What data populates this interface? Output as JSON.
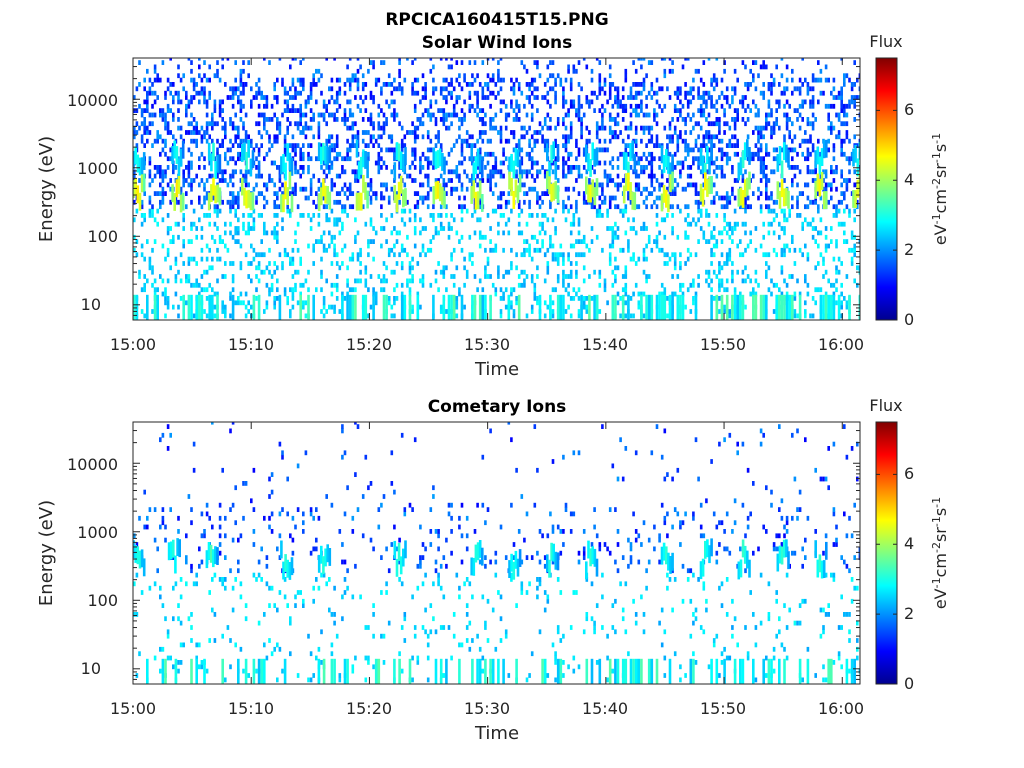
{
  "figure": {
    "title": "RPCICA160415T15.PNG"
  },
  "colors": {
    "axis": "#262626",
    "colormap": [
      "#00008f",
      "#0000ff",
      "#0080ff",
      "#00ffff",
      "#80ff80",
      "#ffff00",
      "#ff8000",
      "#ff0000",
      "#800000"
    ]
  },
  "colorbar": {
    "label": "Flux",
    "ticks": [
      "0",
      "2",
      "4",
      "6"
    ],
    "range": [
      0,
      7.5
    ],
    "unit": {
      "base1": "eV",
      "exp1": "-1",
      "base2": "cm",
      "exp2": "-2",
      "base3": "sr",
      "exp3": "-1",
      "base4": "s",
      "exp4": "-1"
    }
  },
  "chart_data": [
    {
      "type": "heatmap",
      "title": "Solar Wind Ions",
      "xlabel": "Time",
      "ylabel": "Energy (eV)",
      "x_ticks": [
        "15:00",
        "15:10",
        "15:20",
        "15:30",
        "15:40",
        "15:50",
        "16:00"
      ],
      "y_ticks": [
        "10",
        "100",
        "1000",
        "10000"
      ],
      "xlim": [
        "15:00",
        "16:01"
      ],
      "ylim": [
        6,
        40000
      ],
      "yscale": "log",
      "zlim": [
        0,
        7.5
      ],
      "beam_times_min": [
        0.3,
        3.6,
        6.7,
        9.5,
        12.8,
        16.0,
        19.2,
        22.4,
        25.7,
        28.9,
        32.1,
        35.3,
        38.6,
        41.8,
        45.0,
        48.3,
        51.5,
        54.8,
        58.0,
        61.2
      ],
      "beam_energies_eV": [
        1300,
        450
      ],
      "beam_peak_flux": 4.5,
      "background_flux": 2.3
    },
    {
      "type": "heatmap",
      "title": "Cometary Ions",
      "xlabel": "Time",
      "ylabel": "Energy (eV)",
      "x_ticks": [
        "15:00",
        "15:10",
        "15:20",
        "15:30",
        "15:40",
        "15:50",
        "16:00"
      ],
      "y_ticks": [
        "10",
        "100",
        "1000",
        "10000"
      ],
      "xlim": [
        "15:00",
        "16:01"
      ],
      "ylim": [
        6,
        40000
      ],
      "yscale": "log",
      "zlim": [
        0,
        7.5
      ],
      "beam_times_min": [
        0.3,
        3.3,
        6.5,
        12.8,
        16.0,
        22.4,
        28.9,
        32.1,
        35.3,
        38.6,
        45.0,
        48.3,
        51.5,
        54.8,
        58.0
      ],
      "beam_energies_eV": [
        400
      ],
      "beam_peak_flux": 3.0,
      "background_flux": 2.3
    }
  ]
}
